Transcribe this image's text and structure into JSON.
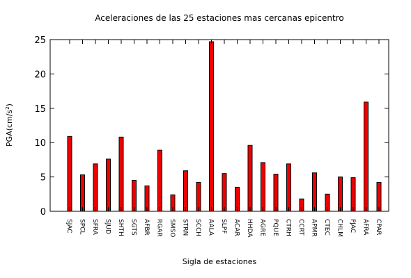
{
  "chart_data": {
    "type": "bar",
    "title": "Aceleraciones de las 25 estaciones mas cercanas epicentro",
    "xlabel": "Sigla de estaciones",
    "ylabel": "PGA(cm/s",
    "ylabel_sup": "2",
    "ylabel_close": ")",
    "ylim": [
      0,
      25
    ],
    "yticks": [
      "0",
      "5",
      "10",
      "15",
      "20",
      "25"
    ],
    "grid": false,
    "bar_color": "#ee0000",
    "categories": [
      "SJAC",
      "SPCL",
      "SFRA",
      "SJUD",
      "SHTH",
      "SGTS",
      "AFBR",
      "RGAR",
      "SMSO",
      "STRN",
      "SCCH",
      "AALA",
      "SLPF",
      "ACAR",
      "HHDA",
      "AGRE",
      "PQUE",
      "CTRH",
      "CCRT",
      "APMR",
      "CTEC",
      "CHLM",
      "PJAC",
      "AFRA",
      "CPAR"
    ],
    "values": [
      10.9,
      5.3,
      6.9,
      7.6,
      10.8,
      4.5,
      3.7,
      8.9,
      2.4,
      5.9,
      4.2,
      24.7,
      5.5,
      3.5,
      9.6,
      7.1,
      5.4,
      6.9,
      1.8,
      5.6,
      2.5,
      5.0,
      4.9,
      15.9,
      4.2
    ]
  }
}
